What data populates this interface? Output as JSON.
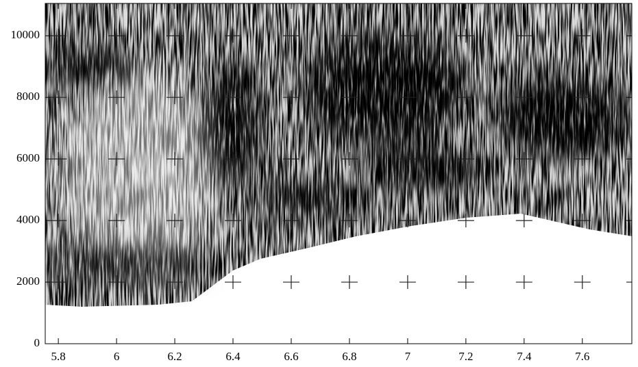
{
  "chart_data": {
    "type": "spectrogram",
    "xlim": [
      5.755,
      7.77
    ],
    "xticks": [
      5.8,
      6,
      6.2,
      6.4,
      6.6,
      6.8,
      7,
      7.2,
      7.4,
      7.6
    ],
    "ylim": [
      0,
      11050
    ],
    "yticks": [
      0,
      2000,
      4000,
      6000,
      8000,
      10000
    ]
  }
}
